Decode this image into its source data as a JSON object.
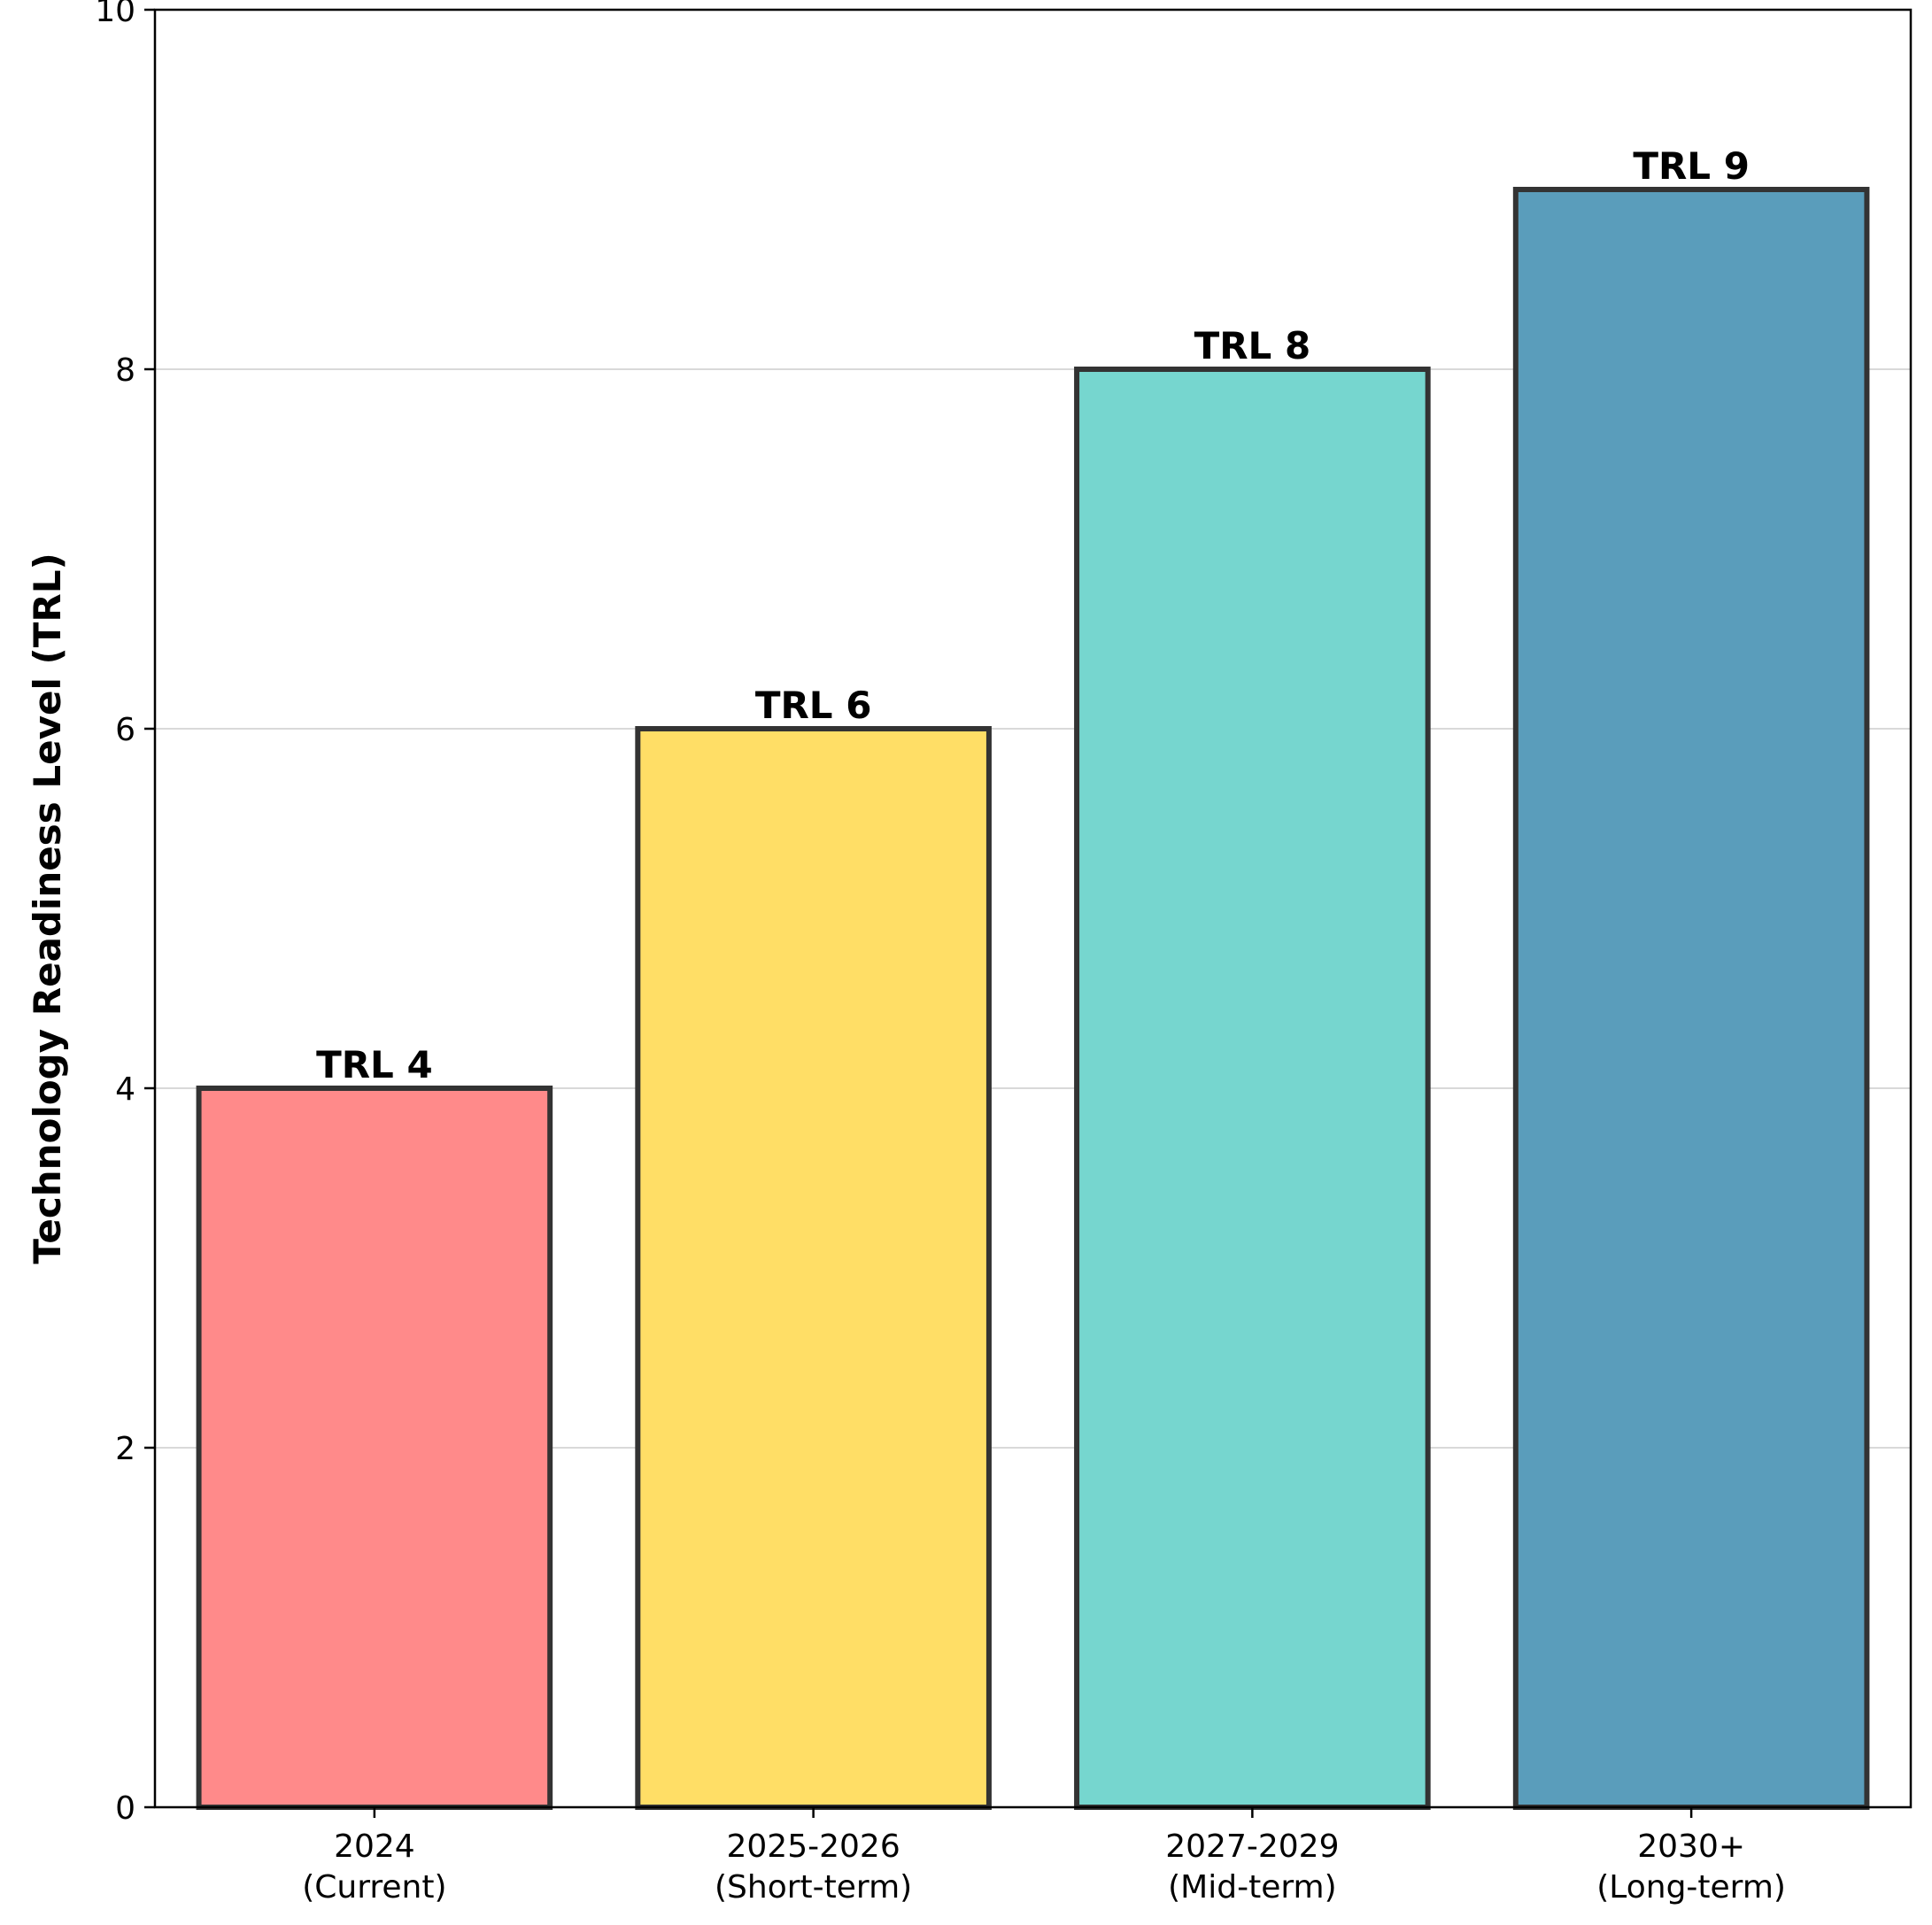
{
  "chart_data": {
    "type": "bar",
    "title": "",
    "xlabel": "",
    "ylabel": "Technology Readiness Level (TRL)",
    "categories": [
      [
        "2024",
        "(Current)"
      ],
      [
        "2025-2026",
        "(Short-term)"
      ],
      [
        "2027-2029",
        "(Mid-term)"
      ],
      [
        "2030+",
        "(Long-term)"
      ]
    ],
    "values": [
      4,
      6,
      8,
      9
    ],
    "data_labels": [
      "TRL 4",
      "TRL 6",
      "TRL 8",
      "TRL 9"
    ],
    "colors": [
      "#FF8A8A",
      "#FFDE66",
      "#76D6CF",
      "#5A9DBB"
    ],
    "edge_color": "#333333",
    "ylim": [
      0,
      10
    ],
    "yticks": [
      0,
      2,
      4,
      6,
      8,
      10
    ],
    "ytick_labels": [
      "0",
      "2",
      "4",
      "6",
      "8",
      "10"
    ],
    "grid": "horizontal"
  }
}
